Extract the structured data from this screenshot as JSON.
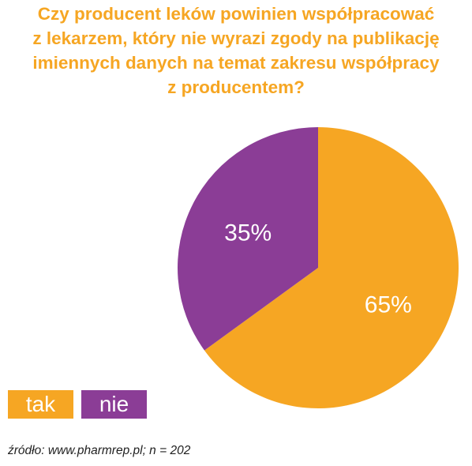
{
  "title_lines": [
    "Czy producent leków powinien współpracować",
    "z lekarzem, który nie wyrazi zgody na publikację",
    "imiennych danych na temat zakresu współpracy",
    "z producentem?"
  ],
  "colors": {
    "title": "#f6a623",
    "tak": "#f6a623",
    "nie": "#8b3d96"
  },
  "chart_data": {
    "type": "pie",
    "title": "Czy producent leków powinien współpracować z lekarzem, który nie wyrazi zgody na publikację imiennych danych na temat zakresu współpracy z producentem?",
    "categories": [
      "tak",
      "nie"
    ],
    "values": [
      65,
      35
    ],
    "labels": [
      "65%",
      "35%"
    ],
    "legend": [
      "tak",
      "nie"
    ],
    "legend_position": "bottom-left"
  },
  "source": "źródło: www.pharmrep.pl; n = 202"
}
